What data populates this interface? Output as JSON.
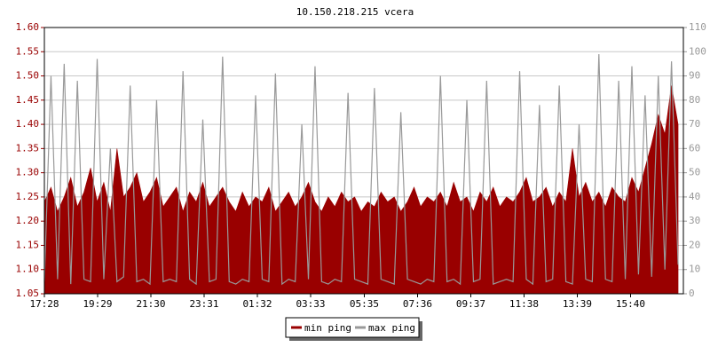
{
  "chart_data": {
    "type": "area-line",
    "title": "10.150.218.215 vcera",
    "x": [
      0,
      15,
      30,
      45,
      60,
      75,
      90,
      105,
      120,
      135,
      150,
      165,
      180,
      195,
      210,
      225,
      240,
      255,
      270,
      285,
      300,
      315,
      330,
      345,
      360,
      375,
      390,
      405,
      420,
      435,
      450,
      465,
      480,
      495,
      510,
      525,
      540,
      555,
      570,
      585,
      600,
      615,
      630,
      645,
      660,
      675,
      690,
      705,
      720,
      735,
      750,
      765,
      780,
      795,
      810,
      825,
      840,
      855,
      870,
      885,
      900,
      915,
      930,
      945,
      960,
      975,
      990,
      1005,
      1020,
      1035,
      1050,
      1065,
      1080,
      1095,
      1110,
      1125,
      1140,
      1155,
      1170,
      1185,
      1200,
      1215,
      1230,
      1245,
      1260,
      1275,
      1290,
      1305,
      1320,
      1335,
      1350,
      1365,
      1380,
      1395,
      1410,
      1425,
      1440
    ],
    "xlim": [
      0,
      1452
    ],
    "xticks": [
      {
        "value": 0,
        "label": "17:28"
      },
      {
        "value": 121,
        "label": "19:29"
      },
      {
        "value": 242,
        "label": "21:30"
      },
      {
        "value": 363,
        "label": "23:31"
      },
      {
        "value": 484,
        "label": "01:32"
      },
      {
        "value": 605,
        "label": "03:33"
      },
      {
        "value": 727,
        "label": "05:35"
      },
      {
        "value": 848,
        "label": "07:36"
      },
      {
        "value": 969,
        "label": "09:37"
      },
      {
        "value": 1090,
        "label": "11:38"
      },
      {
        "value": 1211,
        "label": "13:39"
      },
      {
        "value": 1332,
        "label": "15:40"
      }
    ],
    "ylim": [
      1.05,
      1.6
    ],
    "yticks": [
      1.05,
      {
        "value": 1.1,
        "label": "1.10"
      },
      1.15,
      {
        "value": 1.2,
        "label": "1.20"
      },
      1.25,
      {
        "value": 1.3,
        "label": "1.30"
      },
      1.35,
      {
        "value": 1.4,
        "label": "1.40"
      },
      1.45,
      {
        "value": 1.5,
        "label": "1.50"
      },
      1.55,
      {
        "value": 1.6,
        "label": "1.60"
      }
    ],
    "y2lim": [
      0,
      110
    ],
    "y2ticks": [
      0,
      10,
      20,
      30,
      40,
      50,
      60,
      70,
      80,
      90,
      100,
      110
    ],
    "grid": true,
    "series": [
      {
        "name": "min ping",
        "color": "#990000",
        "values": [
          1.24,
          1.27,
          1.22,
          1.25,
          1.29,
          1.23,
          1.26,
          1.31,
          1.24,
          1.28,
          1.22,
          1.35,
          1.25,
          1.27,
          1.3,
          1.24,
          1.26,
          1.29,
          1.23,
          1.25,
          1.27,
          1.22,
          1.26,
          1.24,
          1.28,
          1.23,
          1.25,
          1.27,
          1.24,
          1.22,
          1.26,
          1.23,
          1.25,
          1.24,
          1.27,
          1.22,
          1.24,
          1.26,
          1.23,
          1.25,
          1.28,
          1.24,
          1.22,
          1.25,
          1.23,
          1.26,
          1.24,
          1.25,
          1.22,
          1.24,
          1.23,
          1.26,
          1.24,
          1.25,
          1.22,
          1.24,
          1.27,
          1.23,
          1.25,
          1.24,
          1.26,
          1.23,
          1.28,
          1.24,
          1.25,
          1.22,
          1.26,
          1.24,
          1.27,
          1.23,
          1.25,
          1.24,
          1.26,
          1.29,
          1.24,
          1.25,
          1.27,
          1.23,
          1.26,
          1.24,
          1.35,
          1.25,
          1.28,
          1.24,
          1.26,
          1.23,
          1.27,
          1.25,
          1.24,
          1.29,
          1.26,
          1.31,
          1.36,
          1.42,
          1.38,
          1.48,
          1.4
        ]
      },
      {
        "name": "max ping",
        "color": "#999999",
        "axis": "y2",
        "values": [
          5,
          90,
          6,
          95,
          4,
          88,
          6,
          5,
          97,
          6,
          60,
          5,
          7,
          86,
          5,
          6,
          4,
          80,
          5,
          6,
          5,
          92,
          6,
          4,
          72,
          5,
          6,
          98,
          5,
          4,
          6,
          5,
          82,
          6,
          5,
          91,
          4,
          6,
          5,
          70,
          6,
          94,
          5,
          4,
          6,
          5,
          83,
          6,
          5,
          4,
          85,
          6,
          5,
          4,
          75,
          6,
          5,
          4,
          6,
          5,
          90,
          5,
          6,
          4,
          80,
          5,
          6,
          88,
          4,
          5,
          6,
          5,
          92,
          6,
          4,
          78,
          5,
          6,
          86,
          5,
          4,
          70,
          6,
          5,
          99,
          6,
          5,
          88,
          6,
          94,
          8,
          82,
          7,
          90,
          10,
          96,
          12
        ]
      }
    ]
  }
}
